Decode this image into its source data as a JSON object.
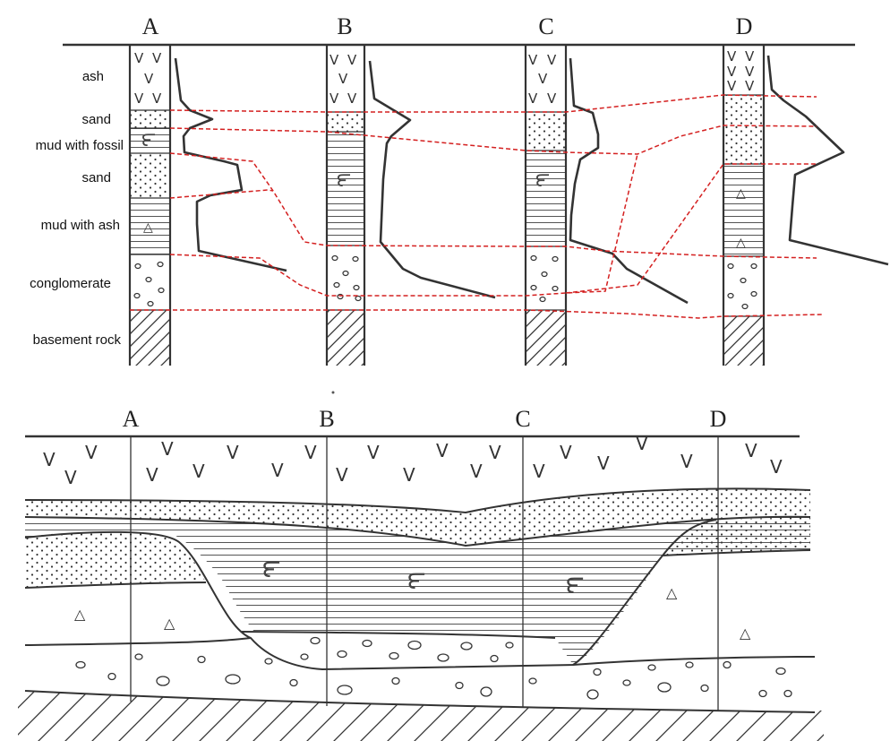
{
  "columns": [
    "A",
    "B",
    "C",
    "D"
  ],
  "legend": {
    "ash": "ash",
    "sand1": "sand",
    "mud_fossil": "mud with fossil",
    "sand2": "sand",
    "mud_ash": "mud with ash",
    "conglomerate": "conglomerate",
    "basement": "basement rock"
  },
  "symbols": {
    "ash": "V",
    "fossil": "౯",
    "triangle": "△"
  },
  "colors": {
    "ink": "#333333",
    "correlation": "#d42020"
  }
}
